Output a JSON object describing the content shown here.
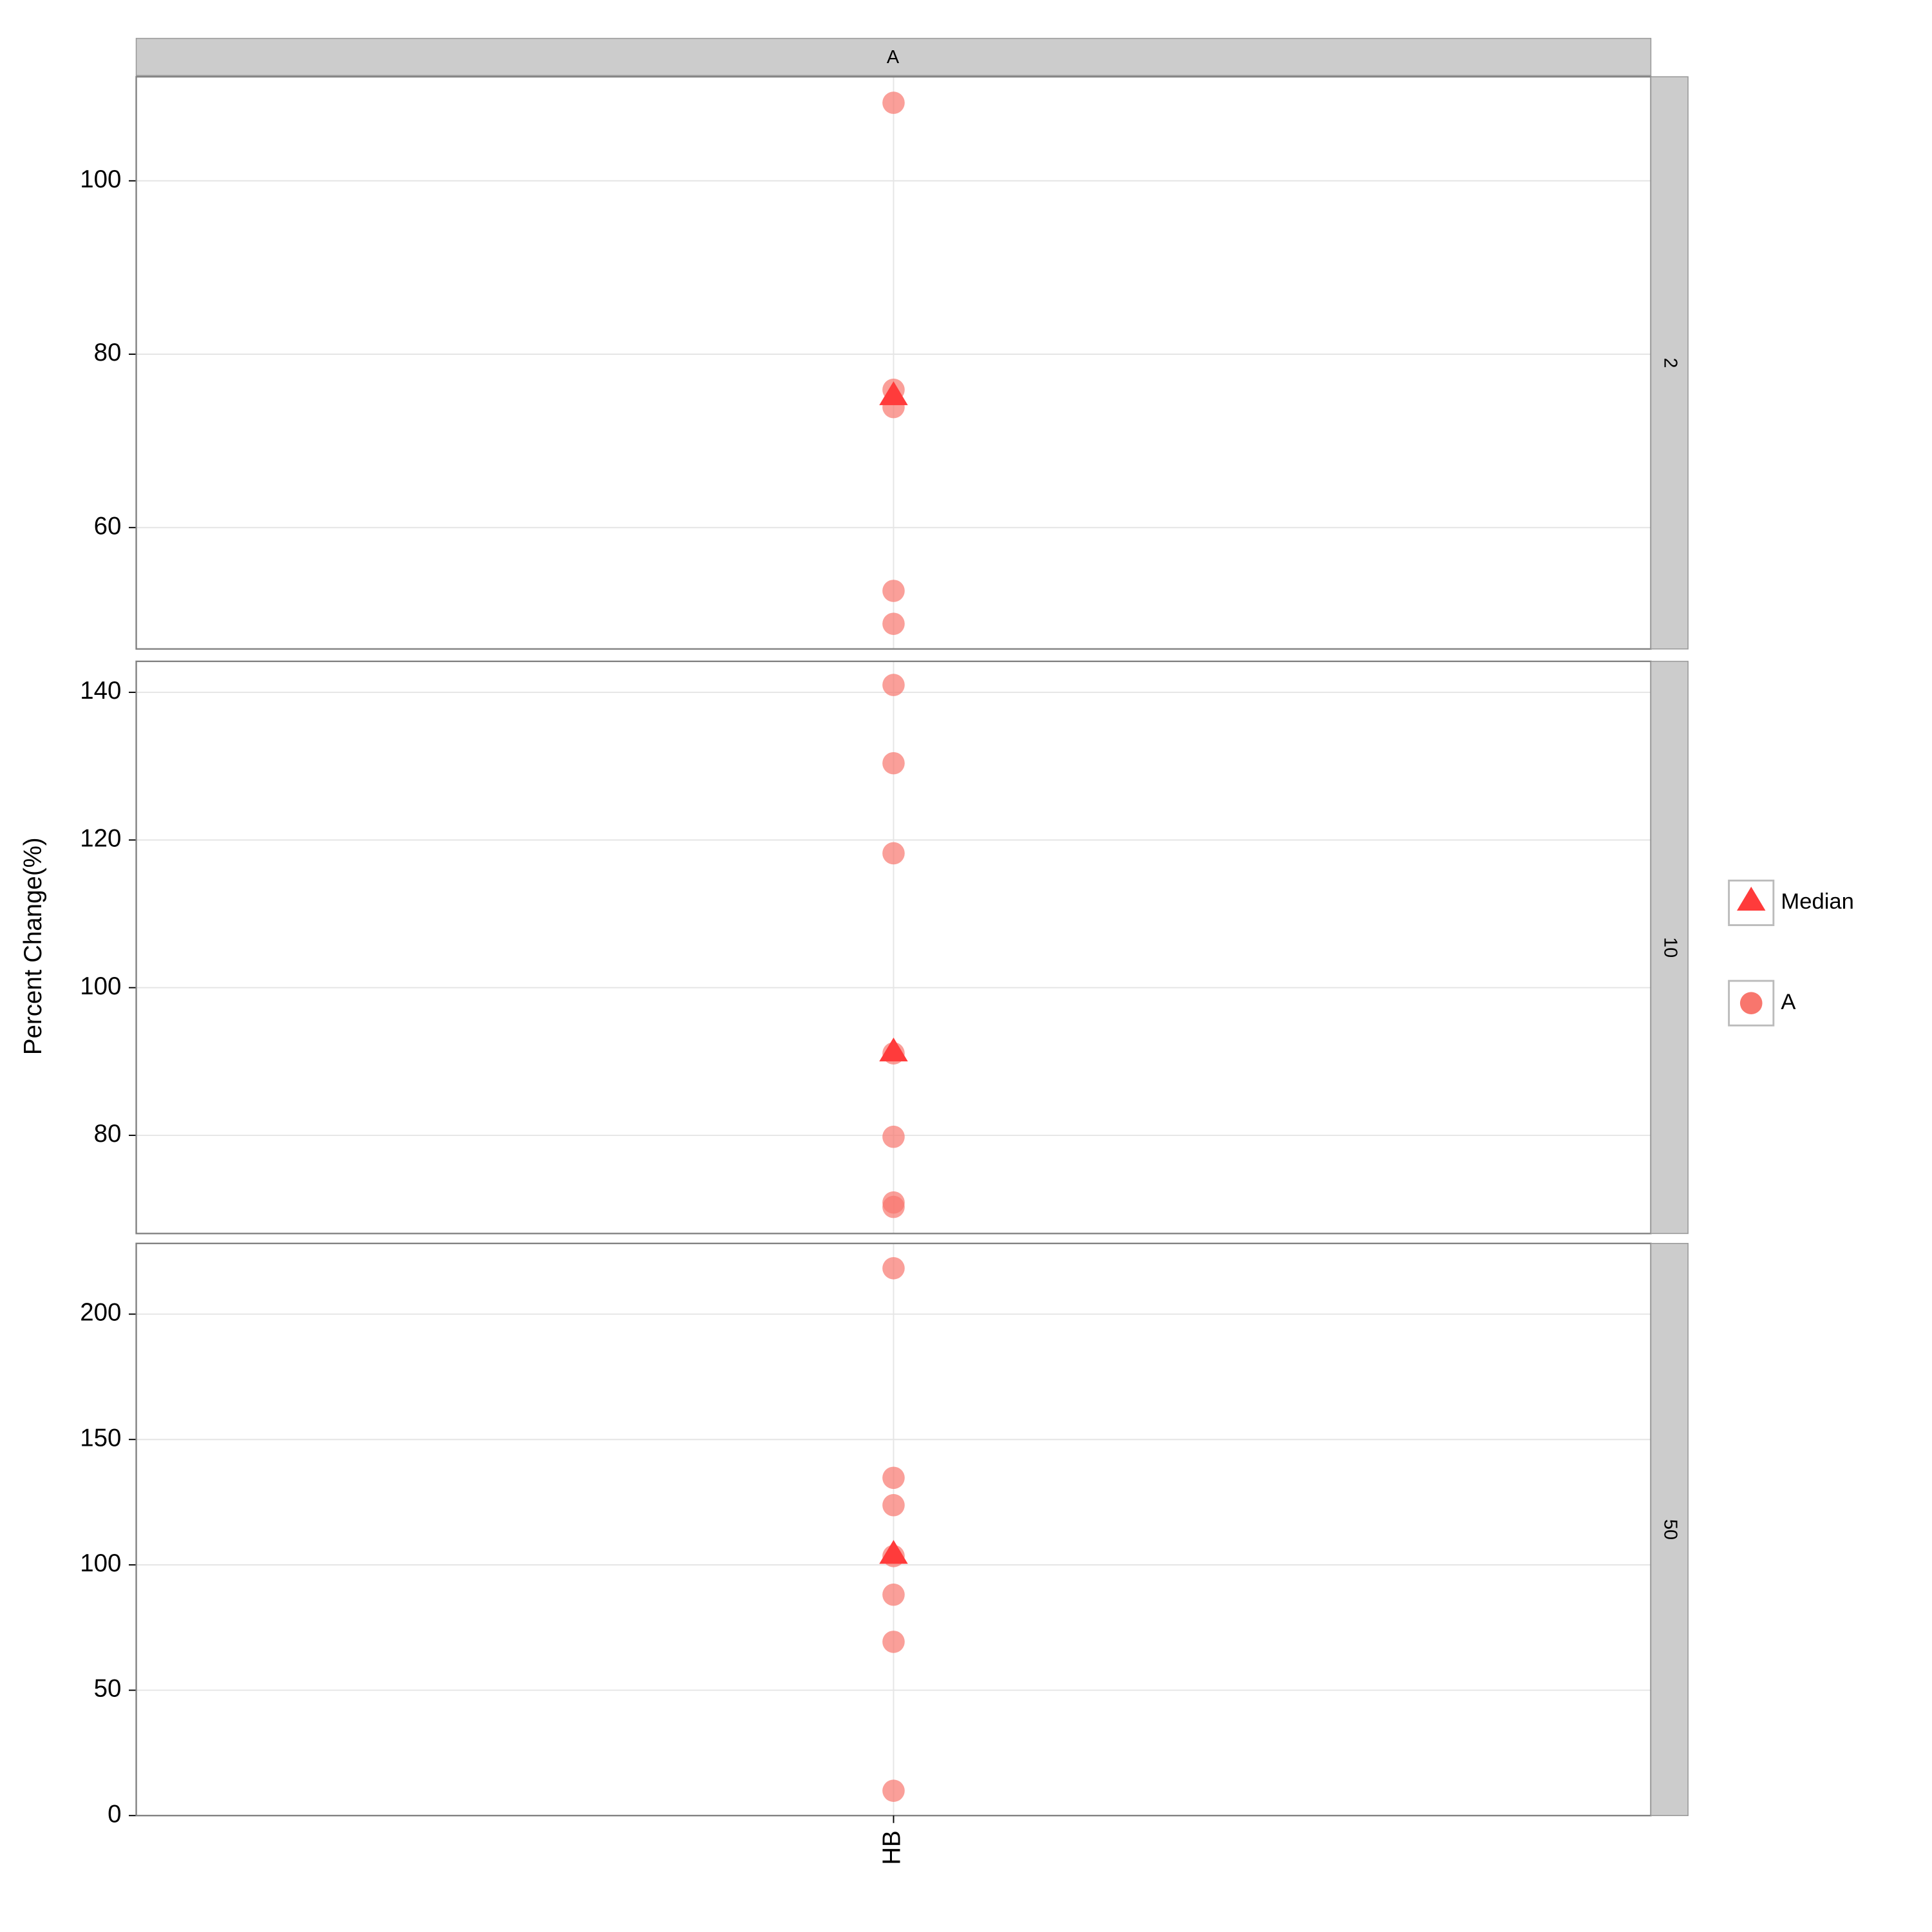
{
  "chart_data": {
    "type": "scatter",
    "strip": "A",
    "y_label": "Percent Change(%)",
    "categories": [
      "HB"
    ],
    "grid": true,
    "panels": [
      {
        "strip": "2",
        "ylim": [
          46,
          112
        ],
        "yticks": [
          60,
          80,
          100
        ],
        "series": [
          {
            "name": "Median",
            "color": "#ff3b3b",
            "marker": "triangle",
            "values": [
              75.3
            ]
          },
          {
            "name": "A",
            "color": "#f8766d",
            "marker": "circle",
            "values": [
              109,
              75.9,
              73.9,
              52.7,
              48.9
            ]
          }
        ]
      },
      {
        "strip": "10",
        "ylim": [
          66.7,
          144.2
        ],
        "yticks": [
          80,
          100,
          120,
          140
        ],
        "series": [
          {
            "name": "Median",
            "color": "#ff3b3b",
            "marker": "triangle",
            "values": [
              91.4
            ]
          },
          {
            "name": "A",
            "color": "#f8766d",
            "marker": "circle",
            "values": [
              141,
              130.4,
              118.2,
              91.1,
              79.8,
              70.9,
              70.3
            ]
          }
        ]
      },
      {
        "strip": "50",
        "ylim": [
          0,
          228.2
        ],
        "yticks": [
          0,
          50,
          100,
          150,
          200
        ],
        "series": [
          {
            "name": "Median",
            "color": "#ff3b3b",
            "marker": "triangle",
            "values": [
              104.5
            ]
          },
          {
            "name": "A",
            "color": "#f8766d",
            "marker": "circle",
            "values": [
              218.3,
              134.7,
              123.8,
              103.5,
              88.1,
              69.3,
              9.9
            ]
          }
        ]
      }
    ]
  }
}
